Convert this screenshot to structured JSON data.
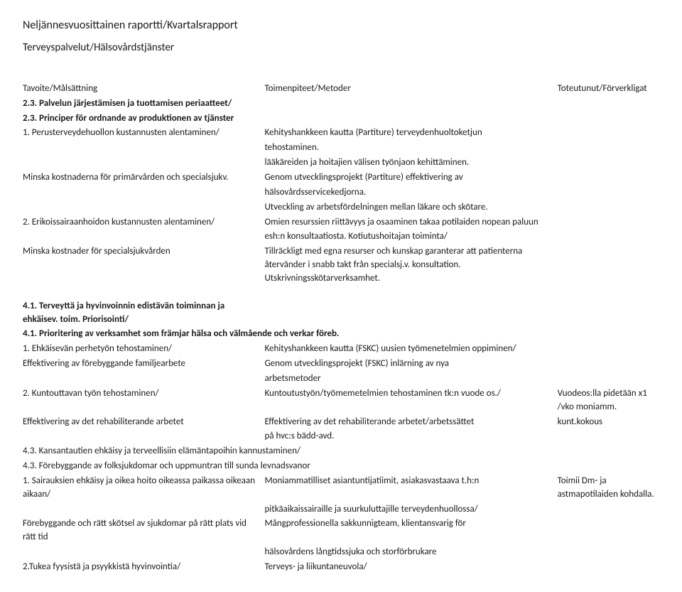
{
  "header": {
    "title": "Neljännesvuosittainen raportti/Kvartalsrapport",
    "subtitle": "Terveyspalvelut/Hälsovårdstjänster"
  },
  "columns": {
    "c1": "Tavoite/Målsättning",
    "c2": "Toimenpiteet/Metoder",
    "c3": "Toteutunut/Förverkligat"
  },
  "sec23": {
    "h_fi": "2.3. Palvelun järjestämisen ja tuottamisen periaatteet/",
    "h_sv": "2.3. Principer för ordnande av produktionen av tjänster",
    "r1": {
      "a": "1. Perusterveydehuollon kustannusten alentaminen/",
      "b": "Kehityshankkeen kautta (Partiture) terveydenhuoltoketjun"
    },
    "r2": {
      "b": "tehostaminen."
    },
    "r3": {
      "b": "lääkäreiden ja hoitajien välisen työnjaon kehittäminen."
    },
    "r4": {
      "a": "Minska kostnaderna för primärvården och specialsjukv.",
      "b": "Genom utvecklingsprojekt (Partiture) effektivering av"
    },
    "r5": {
      "b": "hälsovårdsservicekedjorna."
    },
    "r6": {
      "b": "Utveckling av arbetsfördelningen mellan läkare och skötare."
    },
    "r7": {
      "a": "2. Erikoissairaanhoidon kustannusten alentaminen/",
      "b": "Omien resurssien riittävyys ja osaaminen takaa potilaiden nopean paluun"
    },
    "r8": {
      "b": " esh:n konsultaatiosta. Kotiutushoitajan toiminta/"
    },
    "r9": {
      "a": "Minska kostnader för specialsjukvården",
      "b": "Tillräckligt med egna resurser och kunskap garanterar att patienterna återvänder i snabb takt från specialsj.v. konsultation. Utskrivningsskötarverksamhet."
    }
  },
  "sec41": {
    "h_fi": "4.1. Terveyttä ja hyvinvoinnin edistävän toiminnan ja ehkäisev. toim. Priorisointi/",
    "h_sv": "4.1. Prioritering av verksamhet som främjar hälsa och välmående och verkar föreb.",
    "r1": {
      "a": "1. Ehkäisevän perhetyön tehostaminen/",
      "b": "Kehityshankkeen kautta (FSKC) uusien työmenetelmien oppiminen/"
    },
    "r2": {
      "a": "Effektivering av förebyggande familjearbete",
      "b": "Genom utvecklingsprojekt (FSKC) inlärning av nya"
    },
    "r3": {
      "b": "arbetsmetoder"
    },
    "r4": {
      "a": "2. Kuntouttavan työn tehostaminen/",
      "b": "Kuntoutustyön/työmemetelmien tehostaminen tk:n vuode os./",
      "c": "Vuodeos:lla pidetään x1 /vko moniamm."
    },
    "r5": {
      "a": "Effektivering av det rehabiliterande arbetet",
      "b": "Effektivering av det rehabiliterande arbetet/arbetssättet",
      "c": "kunt.kokous"
    },
    "r6": {
      "b": " på hvc:s bädd-avd."
    }
  },
  "sec43": {
    "h_fi": "4.3. Kansantautien ehkäisy ja terveellisiin elämäntapoihin kannustaminen/",
    "h_sv": "4.3. Förebyggande av folksjukdomar och uppmuntran till sunda levnadsvanor",
    "r1": {
      "a": "1. Sairauksien ehkäisy ja oikea hoito oikeassa paikassa oikeaan aikaan/",
      "b": "Moniammatilliset asiantuntijatiimit, asiakasvastaava t.h:n",
      "c": "Toimii Dm- ja astmapotilaiden kohdalla."
    },
    "r2": {
      "b": "pitkäaikaissairaille ja suurkuluttajille terveydenhuollossa/"
    },
    "r3": {
      "a": "Förebyggande och rätt skötsel av sjukdomar på rätt plats vid rätt tid",
      "b": "Mångprofessionella sakkunnigteam, klientansvarig för"
    },
    "r4": {
      "b": "hälsovårdens långtidssjuka och storförbrukare"
    },
    "r5": {
      "a": "2.Tukea fyysistä ja psyykkistä hyvinvointia/",
      "b": "Terveys- ja liikuntaneuvola/"
    }
  }
}
